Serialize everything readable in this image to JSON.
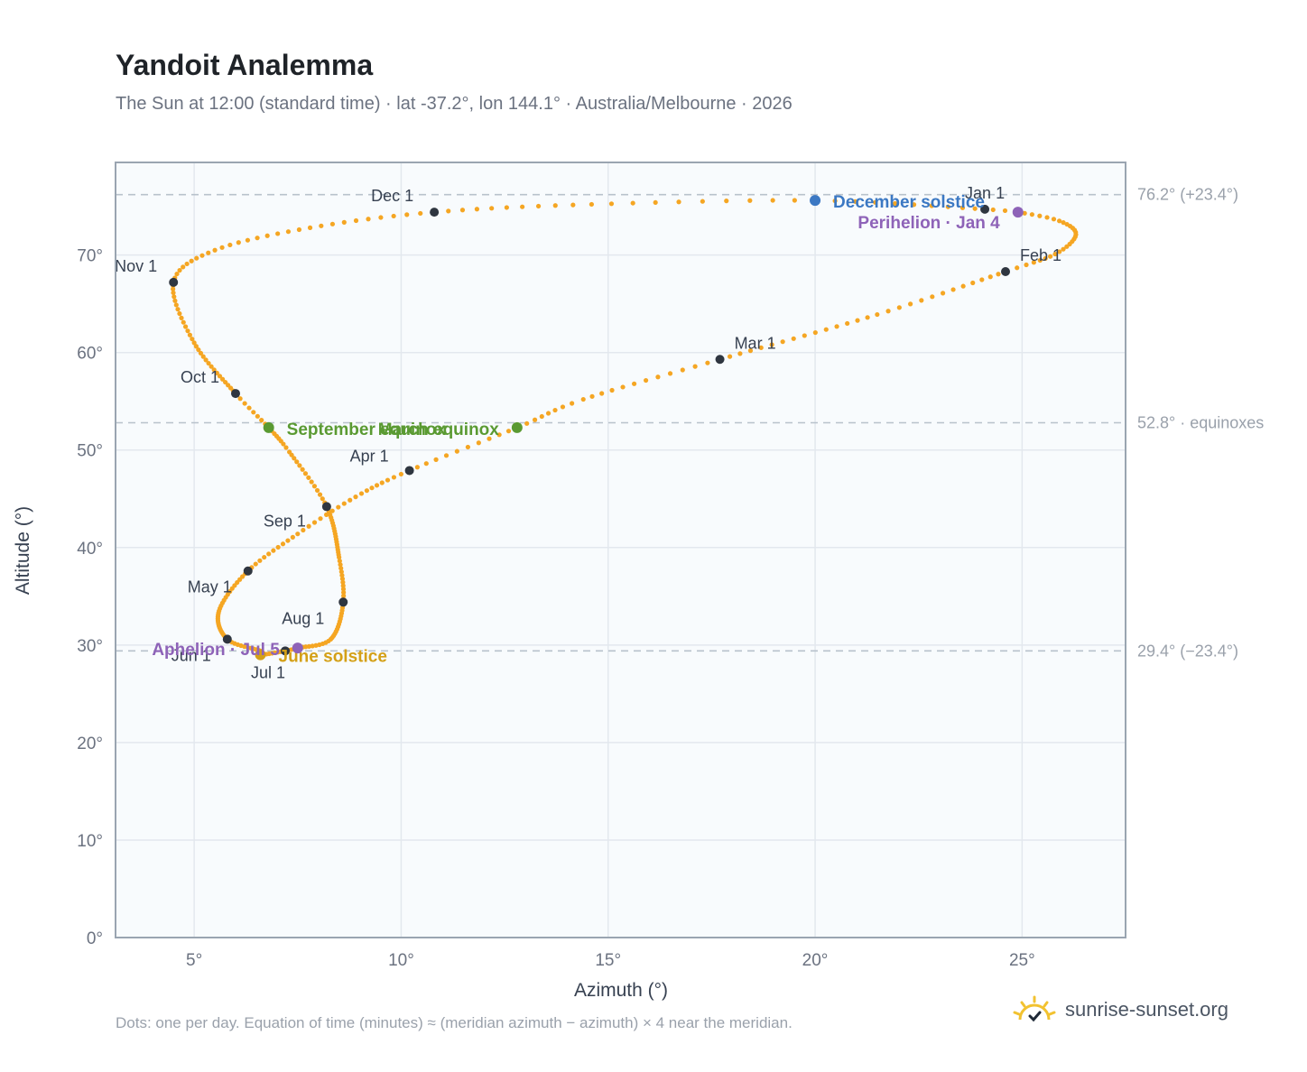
{
  "header": {
    "title": "Yandoit Analemma",
    "subtitle": "The Sun at 12:00 (standard time) · lat -37.2°, lon 144.1° · Australia/Melbourne · 2026"
  },
  "footer": {
    "note": "Dots: one per day. Equation of time (minutes) ≈ (meridian azimuth − azimuth) × 4 near the meridian.",
    "brand": "sunrise-sunset.org",
    "brand_icon": "sun-logo-icon"
  },
  "colors": {
    "curve": "#f5a623",
    "month_dot": "#2f3640",
    "december_solstice": "#3b78c3",
    "june_solstice": "#d4a017",
    "equinox": "#5a9a32",
    "apsis": "#8e63b8",
    "ref_line": "#b8c2cc",
    "plot_bg": "#f8fbfd",
    "grid": "#e3e8ee",
    "frame": "#9aa5b1"
  },
  "chart_data": {
    "type": "scatter",
    "title": "Yandoit Analemma",
    "xlabel": "Azimuth (°)",
    "ylabel": "Altitude (°)",
    "xlim": [
      3.1,
      27.5
    ],
    "ylim": [
      0,
      79.5
    ],
    "x_ticks": [
      5,
      10,
      15,
      20,
      25
    ],
    "x_tick_labels": [
      "5°",
      "10°",
      "15°",
      "20°",
      "25°"
    ],
    "y_ticks": [
      0,
      10,
      20,
      30,
      40,
      50,
      60,
      70
    ],
    "y_tick_labels": [
      "0°",
      "10°",
      "20°",
      "30°",
      "40°",
      "50°",
      "60°",
      "70°"
    ],
    "grid": true,
    "reference_lines": [
      {
        "y": 76.2,
        "label": "76.2° (+23.4°)"
      },
      {
        "y": 52.8,
        "label": "52.8° · equinoxes"
      },
      {
        "y": 29.4,
        "label": "29.4° (−23.4°)"
      }
    ],
    "series_path_day_x": [
      [
        1,
        24.1,
        74.7
      ],
      [
        4,
        24.9,
        74.4
      ],
      [
        10,
        25.9,
        73.5
      ],
      [
        17,
        26.3,
        72.1
      ],
      [
        25,
        25.8,
        70.1
      ],
      [
        32,
        24.6,
        68.3
      ],
      [
        45,
        21.5,
        63.9
      ],
      [
        60,
        17.7,
        59.3
      ],
      [
        72,
        14.4,
        55.2
      ],
      [
        80,
        12.8,
        52.3
      ],
      [
        91,
        10.2,
        47.9
      ],
      [
        100,
        8.9,
        45.2
      ],
      [
        110,
        7.5,
        41.4
      ],
      [
        121,
        6.3,
        37.6
      ],
      [
        135,
        5.6,
        33.5
      ],
      [
        152,
        5.8,
        30.6
      ],
      [
        164,
        6.6,
        29.4
      ],
      [
        172,
        6.6,
        29.0
      ],
      [
        182,
        7.2,
        29.4
      ],
      [
        186,
        7.5,
        29.7
      ],
      [
        197,
        8.3,
        30.6
      ],
      [
        212,
        8.6,
        34.4
      ],
      [
        225,
        8.5,
        39.0
      ],
      [
        244,
        8.2,
        44.2
      ],
      [
        258,
        7.3,
        49.8
      ],
      [
        266,
        6.8,
        52.3
      ],
      [
        274,
        6.0,
        55.8
      ],
      [
        290,
        5.0,
        61.0
      ],
      [
        305,
        4.5,
        67.2
      ],
      [
        315,
        5.5,
        70.5
      ],
      [
        325,
        7.8,
        72.8
      ],
      [
        335,
        10.8,
        74.4
      ],
      [
        345,
        14.6,
        75.2
      ],
      [
        355,
        20.0,
        75.6
      ],
      [
        365,
        24.1,
        74.7
      ]
    ],
    "month_markers": [
      {
        "label": "Jan 1",
        "x": 24.1,
        "y": 74.7
      },
      {
        "label": "Feb 1",
        "x": 24.6,
        "y": 68.3
      },
      {
        "label": "Mar 1",
        "x": 17.7,
        "y": 59.3
      },
      {
        "label": "Apr 1",
        "x": 10.2,
        "y": 47.9
      },
      {
        "label": "May 1",
        "x": 6.3,
        "y": 37.6
      },
      {
        "label": "Jun 1",
        "x": 5.8,
        "y": 30.6
      },
      {
        "label": "Jul 1",
        "x": 7.2,
        "y": 29.4
      },
      {
        "label": "Aug 1",
        "x": 8.6,
        "y": 34.4
      },
      {
        "label": "Sep 1",
        "x": 8.2,
        "y": 44.2
      },
      {
        "label": "Oct 1",
        "x": 6.0,
        "y": 55.8
      },
      {
        "label": "Nov 1",
        "x": 4.5,
        "y": 67.2
      },
      {
        "label": "Dec 1",
        "x": 10.8,
        "y": 74.4
      }
    ],
    "events": [
      {
        "label": "December solstice",
        "x": 20.0,
        "y": 75.6,
        "color_key": "december_solstice"
      },
      {
        "label": "Perihelion · Jan 4",
        "x": 24.9,
        "y": 74.4,
        "color_key": "apsis"
      },
      {
        "label": "March equinox",
        "x": 12.8,
        "y": 52.3,
        "color_key": "equinox"
      },
      {
        "label": "September equinox",
        "x": 6.8,
        "y": 52.3,
        "color_key": "equinox"
      },
      {
        "label": "June solstice",
        "x": 6.6,
        "y": 29.0,
        "color_key": "june_solstice"
      },
      {
        "label": "Aphelion · Jul 5",
        "x": 7.5,
        "y": 29.7,
        "color_key": "apsis"
      }
    ]
  }
}
